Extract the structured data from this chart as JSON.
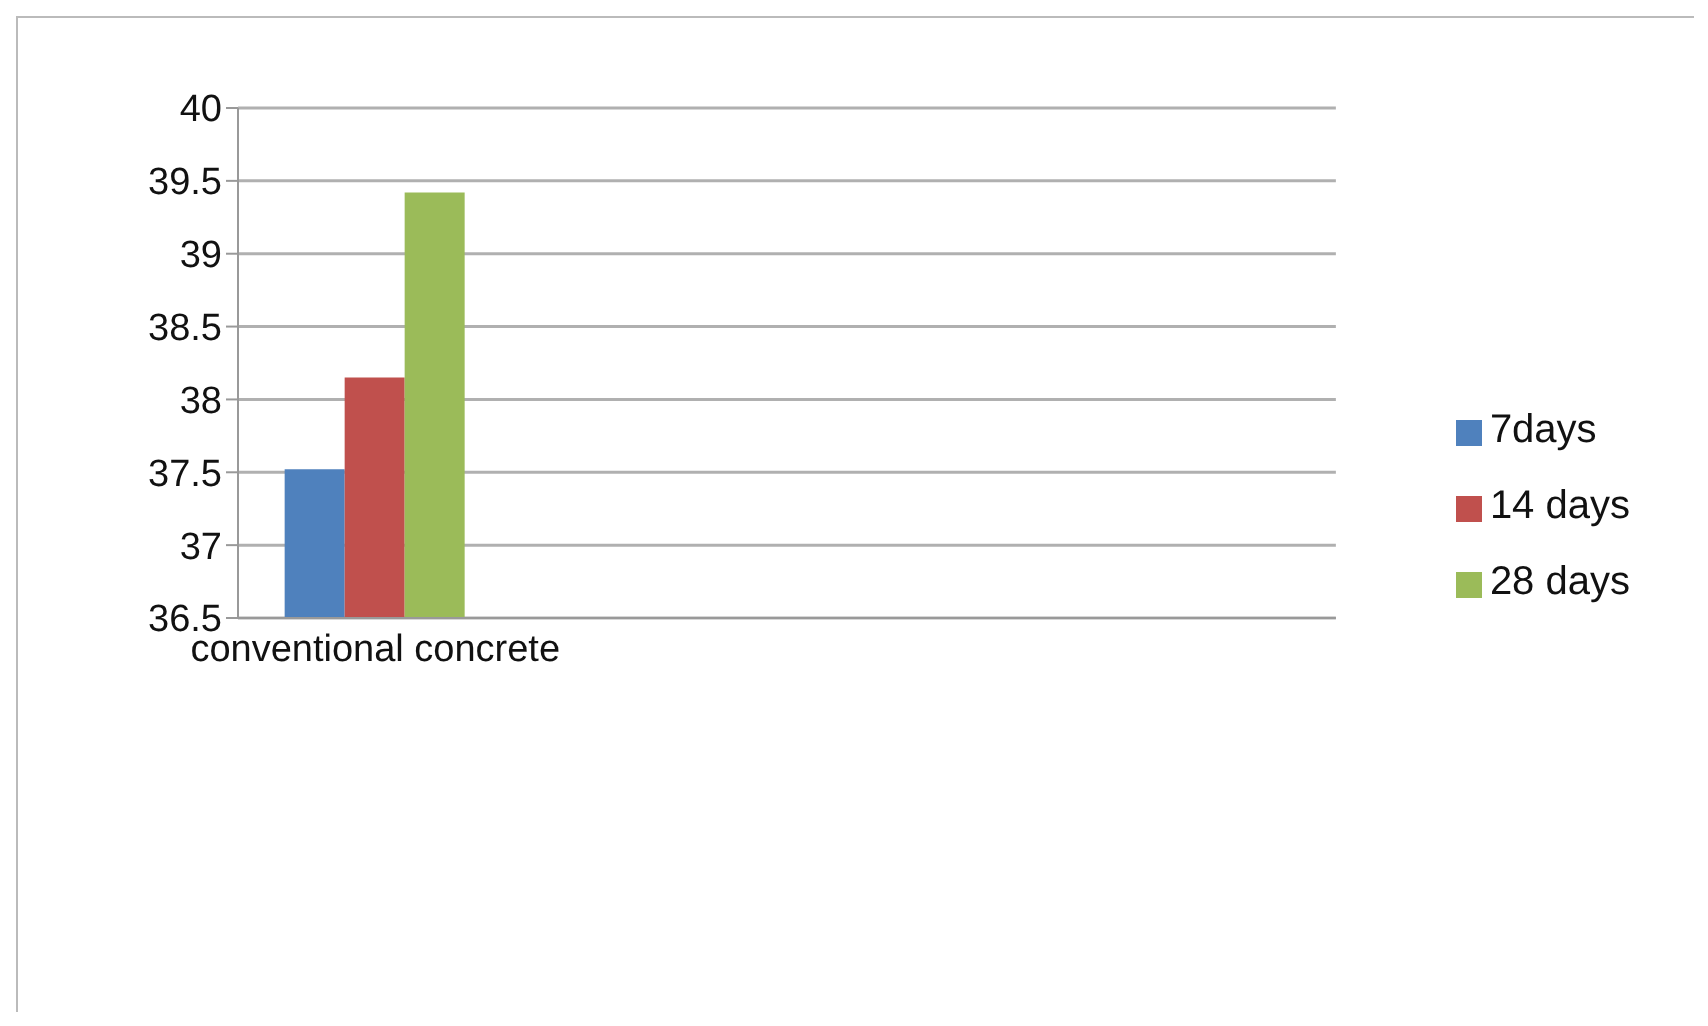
{
  "chart_data": {
    "type": "bar",
    "categories": [
      "conventional concrete",
      null,
      null,
      null
    ],
    "series": [
      {
        "name": "7days",
        "color": "#4f81bd",
        "values": [
          37.52,
          null,
          null,
          null
        ]
      },
      {
        "name": "14 days",
        "color": "#c0504d",
        "values": [
          38.15,
          null,
          null,
          null
        ]
      },
      {
        "name": "28 days",
        "color": "#9bbb59",
        "values": [
          39.42,
          null,
          null,
          null
        ]
      }
    ],
    "ylim": [
      36.5,
      40
    ],
    "yticks": [
      36.5,
      37,
      37.5,
      38,
      38.5,
      39,
      39.5,
      40
    ],
    "grid": "y",
    "legend": "right"
  }
}
